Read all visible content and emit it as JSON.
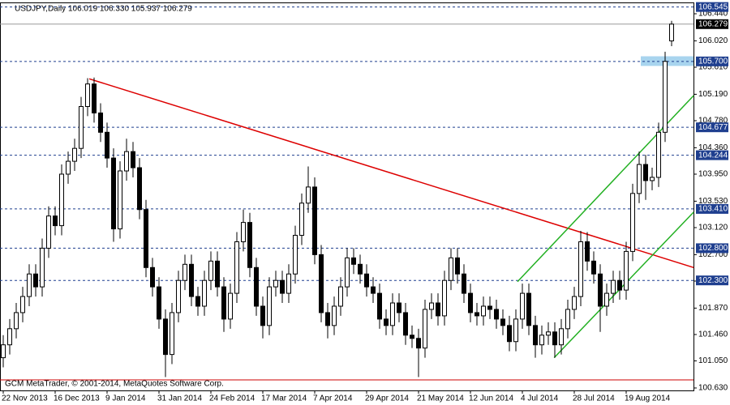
{
  "chart_data": {
    "type": "candlestick",
    "title": "USDJPY,Daily  106.019 106.330 105.937 106.279",
    "footer": "GCM MetaTrader, © 2001-2014, MetaQuotes Software Corp.",
    "categories": [
      "22 Nov 2013",
      null,
      null,
      null,
      null,
      null,
      null,
      null,
      "16 Dec 2013",
      null,
      null,
      null,
      null,
      null,
      null,
      null,
      "9 Jan 2014",
      null,
      null,
      null,
      null,
      null,
      null,
      null,
      "31 Jan 2014",
      null,
      null,
      null,
      null,
      null,
      null,
      null,
      "24 Feb 2014",
      null,
      null,
      null,
      null,
      null,
      null,
      null,
      "17 Mar 2014",
      null,
      null,
      null,
      null,
      null,
      null,
      null,
      "7 Apr 2014",
      null,
      null,
      null,
      null,
      null,
      null,
      null,
      "29 Apr 2014",
      null,
      null,
      null,
      null,
      null,
      null,
      null,
      "21 May 2014",
      null,
      null,
      null,
      null,
      null,
      null,
      null,
      "12 Jun 2014",
      null,
      null,
      null,
      null,
      null,
      null,
      null,
      "4 Jul 2014",
      null,
      null,
      null,
      null,
      null,
      null,
      null,
      "28 Jul 2014",
      null,
      null,
      null,
      null,
      null,
      null,
      null,
      "19 Aug 2014",
      null,
      null,
      null,
      null,
      null,
      null,
      null
    ],
    "open": [
      101.1,
      101.3,
      101.55,
      101.8,
      102.05,
      102.4,
      102.2,
      102.8,
      103.3,
      103.15,
      103.95,
      104.15,
      104.35,
      105.0,
      105.35,
      104.9,
      104.6,
      104.2,
      103.1,
      104.0,
      104.3,
      104.05,
      103.4,
      102.5,
      102.2,
      101.7,
      101.15,
      101.8,
      102.3,
      102.55,
      102.05,
      101.9,
      102.3,
      102.6,
      102.2,
      101.7,
      102.1,
      102.9,
      103.2,
      102.5,
      101.9,
      101.6,
      102.2,
      102.3,
      102.1,
      102.4,
      103.0,
      103.5,
      103.75,
      102.7,
      101.8,
      101.6,
      101.9,
      102.2,
      102.65,
      102.55,
      102.4,
      102.2,
      102.1,
      101.7,
      101.6,
      101.95,
      101.8,
      101.45,
      101.4,
      101.25,
      101.85,
      101.95,
      101.75,
      102.3,
      102.65,
      102.4,
      102.1,
      101.8,
      101.75,
      101.9,
      101.85,
      101.7,
      101.6,
      101.35,
      101.7,
      102.1,
      101.6,
      101.3,
      101.45,
      101.5,
      101.3,
      101.55,
      101.85,
      102.05,
      102.9,
      102.6,
      102.4,
      101.9,
      102.1,
      102.3,
      102.15,
      102.75,
      103.65,
      104.1,
      103.85,
      103.9,
      104.6,
      106.019
    ],
    "high": [
      101.45,
      101.7,
      101.95,
      102.2,
      102.55,
      102.55,
      102.95,
      103.45,
      103.45,
      104.1,
      104.3,
      104.5,
      105.15,
      105.44,
      105.45,
      105.05,
      104.75,
      104.35,
      104.15,
      104.5,
      104.45,
      104.2,
      103.55,
      102.65,
      102.35,
      101.85,
      101.95,
      102.45,
      102.7,
      102.7,
      102.2,
      102.45,
      102.75,
      102.75,
      102.35,
      102.25,
      103.05,
      103.4,
      103.35,
      102.65,
      102.05,
      102.35,
      102.45,
      102.45,
      102.55,
      103.15,
      103.65,
      104.07,
      103.9,
      102.85,
      101.95,
      102.05,
      102.35,
      102.8,
      102.8,
      102.7,
      102.55,
      102.35,
      102.25,
      101.85,
      102.1,
      102.1,
      101.95,
      101.6,
      101.55,
      102.0,
      102.1,
      102.1,
      102.45,
      102.8,
      102.8,
      102.55,
      102.25,
      101.95,
      102.05,
      102.05,
      102.0,
      101.85,
      101.75,
      101.85,
      102.25,
      102.25,
      101.75,
      101.6,
      101.65,
      101.65,
      101.7,
      102.0,
      102.2,
      103.07,
      103.05,
      102.75,
      102.55,
      102.25,
      102.45,
      102.45,
      102.9,
      103.8,
      104.3,
      104.25,
      104.05,
      104.75,
      105.85,
      106.33
    ],
    "low": [
      100.95,
      101.15,
      101.4,
      101.65,
      101.9,
      102.05,
      102.05,
      102.65,
      103.0,
      103.0,
      103.8,
      104.0,
      104.2,
      104.85,
      104.75,
      104.45,
      104.05,
      102.9,
      102.95,
      103.85,
      103.9,
      103.25,
      102.35,
      102.05,
      101.55,
      100.8,
      101.0,
      101.65,
      102.15,
      101.9,
      101.75,
      101.75,
      102.15,
      102.05,
      101.5,
      101.55,
      101.95,
      102.75,
      102.35,
      101.75,
      101.4,
      101.45,
      102.05,
      101.95,
      101.95,
      102.25,
      102.85,
      103.35,
      102.55,
      101.65,
      101.4,
      101.45,
      101.75,
      102.05,
      102.4,
      102.25,
      102.05,
      101.95,
      101.55,
      101.45,
      101.45,
      101.65,
      101.3,
      101.25,
      100.8,
      101.1,
      101.7,
      101.6,
      101.6,
      102.15,
      102.25,
      101.95,
      101.65,
      101.6,
      101.6,
      101.7,
      101.55,
      101.45,
      101.2,
      101.2,
      101.55,
      101.45,
      101.1,
      101.15,
      101.3,
      101.1,
      101.15,
      101.4,
      101.7,
      101.9,
      102.45,
      102.25,
      101.5,
      101.75,
      101.95,
      102.0,
      102.0,
      102.6,
      103.5,
      103.55,
      103.7,
      103.75,
      104.45,
      105.937
    ],
    "close": [
      101.3,
      101.55,
      101.8,
      102.05,
      102.4,
      102.2,
      102.8,
      103.3,
      103.15,
      103.95,
      104.15,
      104.35,
      105.0,
      105.35,
      104.9,
      104.6,
      104.2,
      103.1,
      104.0,
      104.3,
      104.05,
      103.4,
      102.5,
      102.2,
      101.7,
      101.15,
      101.8,
      102.3,
      102.55,
      102.05,
      101.9,
      102.3,
      102.6,
      102.2,
      101.7,
      102.1,
      102.9,
      103.2,
      102.5,
      101.9,
      101.6,
      102.2,
      102.3,
      102.1,
      102.4,
      103.0,
      103.5,
      103.75,
      102.7,
      101.8,
      101.6,
      101.9,
      102.2,
      102.65,
      102.55,
      102.4,
      102.2,
      102.1,
      101.7,
      101.6,
      101.95,
      101.8,
      101.45,
      101.4,
      101.25,
      101.85,
      101.95,
      101.75,
      102.3,
      102.65,
      102.4,
      102.1,
      101.8,
      101.75,
      101.9,
      101.85,
      101.7,
      101.6,
      101.35,
      101.7,
      102.1,
      101.6,
      101.3,
      101.45,
      101.5,
      101.3,
      101.55,
      101.85,
      102.05,
      102.9,
      102.6,
      102.4,
      101.9,
      102.1,
      102.3,
      102.15,
      102.75,
      103.65,
      104.1,
      103.85,
      103.9,
      104.6,
      105.7,
      106.279
    ],
    "up_color": "#ffffff",
    "down_color": "#000000",
    "ylim": [
      100.592,
      106.616
    ],
    "yticks": [
      {
        "value": 106.44,
        "label": "106.440"
      },
      {
        "value": 106.02,
        "label": "106.020"
      },
      {
        "value": 105.61,
        "label": "105.610"
      },
      {
        "value": 105.19,
        "label": "105.190"
      },
      {
        "value": 104.78,
        "label": "104.780"
      },
      {
        "value": 104.36,
        "label": "104.360"
      },
      {
        "value": 103.95,
        "label": "103.950"
      },
      {
        "value": 103.53,
        "label": "103.530"
      },
      {
        "value": 103.12,
        "label": "103.120"
      },
      {
        "value": 102.7,
        "label": "102.700"
      },
      {
        "value": 102.29,
        "label": "102.290"
      },
      {
        "value": 101.87,
        "label": "101.870"
      },
      {
        "value": 101.46,
        "label": "101.460"
      },
      {
        "value": 101.05,
        "label": "101.050"
      },
      {
        "value": 100.63,
        "label": "100.630"
      }
    ],
    "levels": [
      {
        "value": 106.545,
        "label": "106.545"
      },
      {
        "value": 105.7,
        "label": "105.700"
      },
      {
        "value": 104.677,
        "label": "104.677"
      },
      {
        "value": 104.244,
        "label": "104.244"
      },
      {
        "value": 103.41,
        "label": "103.410"
      },
      {
        "value": 102.8,
        "label": "102.800"
      },
      {
        "value": 102.3,
        "label": "102.300"
      }
    ],
    "level_color": "#1f3f8f",
    "support_line": {
      "value": 100.756,
      "color": "#cc0000"
    },
    "last_price": {
      "value": 106.279,
      "label": "106.279"
    },
    "zone": {
      "low": 105.63,
      "high": 105.78,
      "start": 98.25,
      "color": "#a8d4ee"
    },
    "trendlines": [
      {
        "color": "#dd0000",
        "points": [
          [
            13.25,
            105.43
          ],
          [
            106.4,
            102.5
          ]
        ]
      },
      {
        "color": "#22b022",
        "points": [
          [
            79.25,
            102.28
          ],
          [
            106.4,
            105.17
          ]
        ]
      },
      {
        "color": "#22b022",
        "points": [
          [
            84.9,
            101.1
          ],
          [
            106.4,
            103.36
          ]
        ]
      }
    ]
  }
}
